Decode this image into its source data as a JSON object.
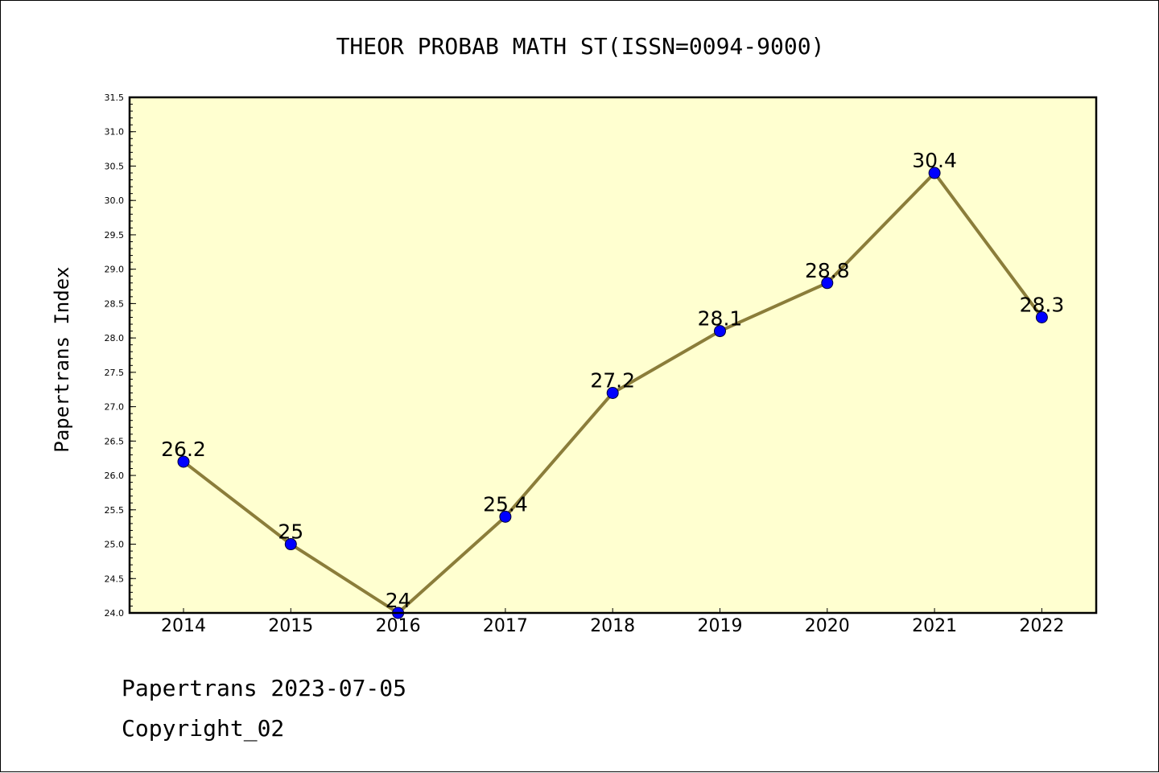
{
  "chart_data": {
    "type": "line",
    "title": "THEOR PROBAB MATH ST(ISSN=0094-9000)",
    "xlabel": "",
    "ylabel": "Papertrans Index",
    "categories": [
      "2014",
      "2015",
      "2016",
      "2017",
      "2018",
      "2019",
      "2020",
      "2021",
      "2022"
    ],
    "series": [
      {
        "values": [
          26.2,
          25,
          24,
          25.4,
          27.2,
          28.1,
          28.8,
          30.4,
          28.3
        ],
        "data_labels": [
          "26.2",
          "25",
          "24",
          "25.4",
          "27.2",
          "28.1",
          "28.8",
          "30.4",
          "28.3"
        ],
        "line_color": "#8b7d3a",
        "marker_color": "#0000ff"
      }
    ],
    "ylim": [
      24.0,
      31.5
    ],
    "yticks": [
      "24.0",
      "24.5",
      "25.0",
      "25.5",
      "26.0",
      "26.5",
      "27.0",
      "27.5",
      "28.0",
      "28.5",
      "29.0",
      "29.5",
      "30.0",
      "30.5",
      "31.0",
      "31.5"
    ],
    "plot_background": "#ffffd0",
    "grid": false,
    "legend": "none"
  },
  "footer": {
    "line1": "Papertrans 2023-07-05",
    "line2": "Copyright_02"
  }
}
